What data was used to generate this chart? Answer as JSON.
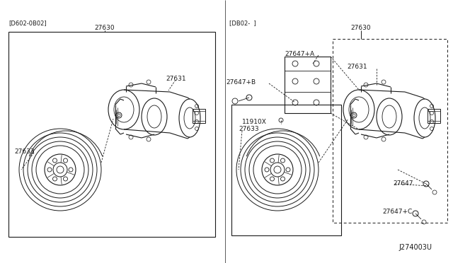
{
  "background_color": "#ffffff",
  "fig_width": 6.4,
  "fig_height": 3.72,
  "dpi": 100,
  "left_label": "[D602-0B02]",
  "right_label": "[DB02-  ]",
  "bottom_ref": "J274003U",
  "text_color": "#1a1a1a",
  "line_color": "#1a1a1a",
  "font_size_label": 6.5,
  "font_size_ref": 7.0,
  "font_size_code": 6.0
}
